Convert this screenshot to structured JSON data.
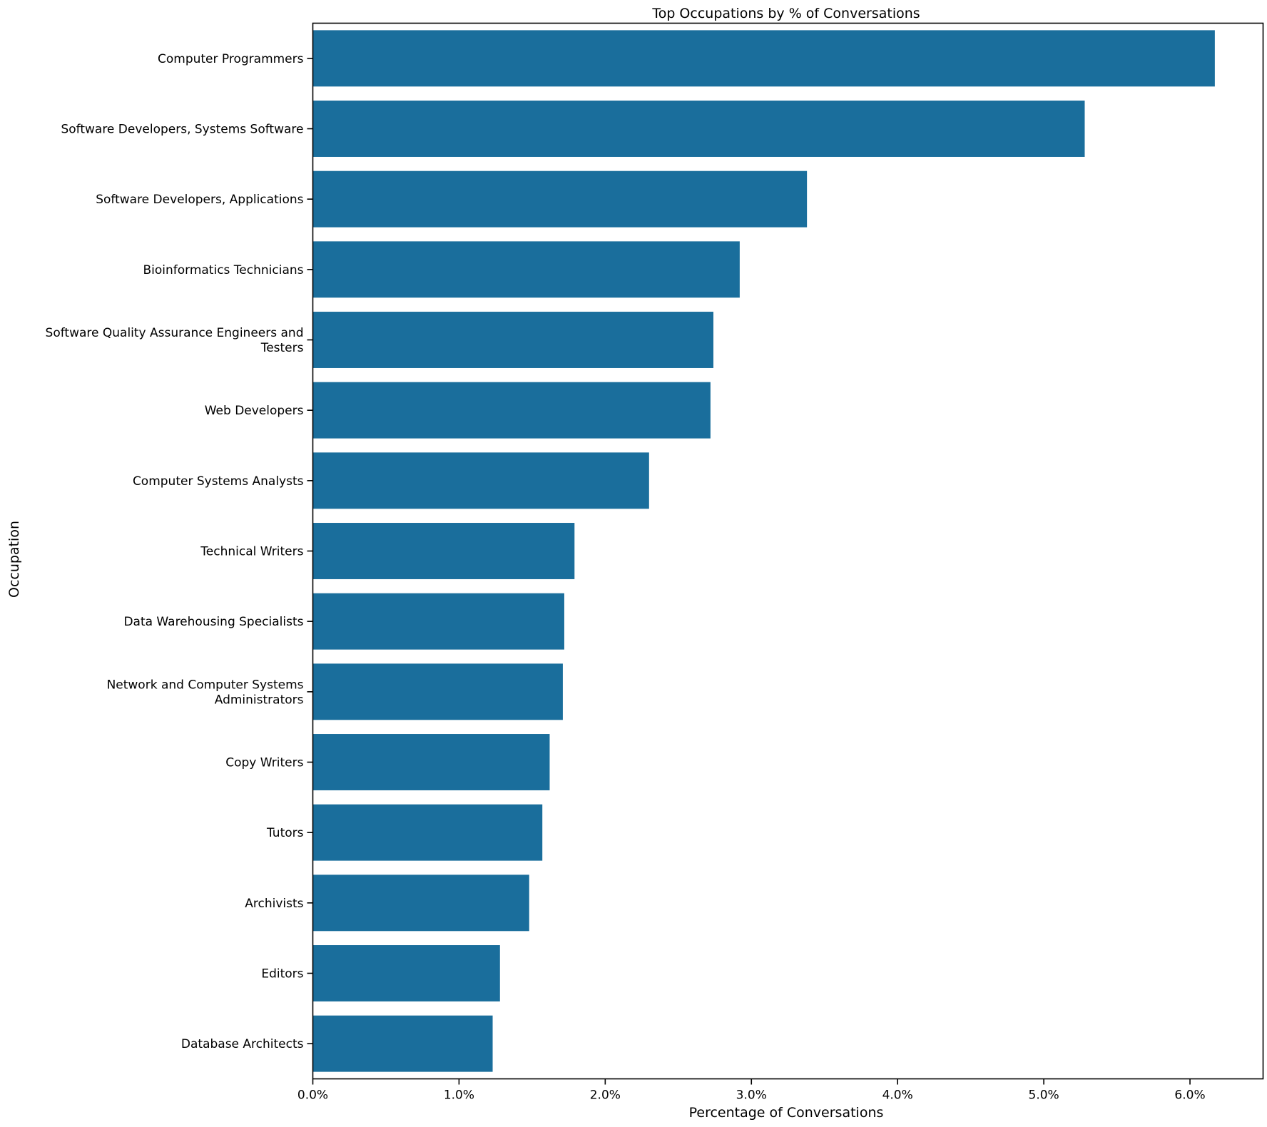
{
  "chart_data": {
    "type": "bar",
    "orientation": "horizontal",
    "title": "Top Occupations by % of Conversations",
    "xlabel": "Percentage of Conversations",
    "ylabel": "Occupation",
    "xlim": [
      0,
      6.5
    ],
    "xticks": [
      0,
      1,
      2,
      3,
      4,
      5,
      6
    ],
    "xtick_labels": [
      "0.0%",
      "1.0%",
      "2.0%",
      "3.0%",
      "4.0%",
      "5.0%",
      "6.0%"
    ],
    "grid": false,
    "bar_color": "#1a6e9c",
    "categories": [
      [
        "Computer Programmers"
      ],
      [
        "Software Developers, Systems Software"
      ],
      [
        "Software Developers, Applications"
      ],
      [
        "Bioinformatics Technicians"
      ],
      [
        "Software Quality Assurance Engineers and",
        "Testers"
      ],
      [
        "Web Developers"
      ],
      [
        "Computer Systems Analysts"
      ],
      [
        "Technical Writers"
      ],
      [
        "Data Warehousing Specialists"
      ],
      [
        "Network and Computer Systems",
        "Administrators"
      ],
      [
        "Copy Writers"
      ],
      [
        "Tutors"
      ],
      [
        "Archivists"
      ],
      [
        "Editors"
      ],
      [
        "Database Architects"
      ]
    ],
    "values": [
      6.17,
      5.28,
      3.38,
      2.92,
      2.74,
      2.72,
      2.3,
      1.79,
      1.72,
      1.71,
      1.62,
      1.57,
      1.48,
      1.28,
      1.23
    ]
  }
}
